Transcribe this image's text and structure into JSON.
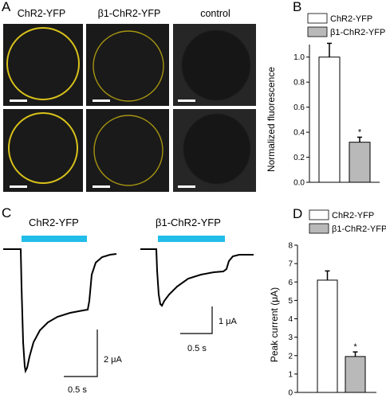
{
  "panel_a": {
    "letter": "A",
    "columns": [
      "ChR2-YFP",
      "β1-ChR2-YFP",
      "control"
    ],
    "cell_outline_color": "#d8c21a",
    "background_color": "#1a1a1a"
  },
  "panel_b": {
    "letter": "B",
    "legend": [
      "ChR2-YFP",
      "β1-ChR2-YFP"
    ]
  },
  "panel_c": {
    "letter": "C",
    "trace_labels": [
      "ChR2-YFP",
      "β1-ChR2-YFP"
    ],
    "light_bar_color": "#22bde8",
    "scalebar_left": {
      "y_label": "2 μA",
      "x_label": "0.5 s"
    },
    "scalebar_right": {
      "y_label": "1 μA",
      "x_label": "0.5 s"
    }
  },
  "panel_d": {
    "letter": "D",
    "legend": [
      "ChR2-YFP",
      "β1-ChR2-YFP"
    ]
  },
  "chart_data": [
    {
      "type": "bar",
      "panel": "B",
      "categories": [
        "ChR2-YFP",
        "β1-ChR2-YFP"
      ],
      "values": [
        1.0,
        0.32
      ],
      "errors": [
        0.11,
        0.04
      ],
      "fill_colors": [
        "#ffffff",
        "#b9b9b9"
      ],
      "ylabel": "Normalized fluorescence",
      "ylim": [
        0,
        1.1
      ],
      "yticks": [
        "0.0",
        "0.2",
        "0.4",
        "0.6",
        "0.8",
        "1.0"
      ],
      "annotation": "*",
      "legend_position": "top"
    },
    {
      "type": "bar",
      "panel": "D",
      "categories": [
        "ChR2-YFP",
        "β1-ChR2-YFP"
      ],
      "values": [
        6.1,
        1.95
      ],
      "errors": [
        0.5,
        0.25
      ],
      "fill_colors": [
        "#ffffff",
        "#b9b9b9"
      ],
      "ylabel": "Peak current (μA)",
      "ylim": [
        0,
        8
      ],
      "yticks": [
        "0",
        "1",
        "2",
        "3",
        "4",
        "5",
        "6",
        "7",
        "8"
      ],
      "annotation": "*",
      "legend_position": "top"
    }
  ]
}
